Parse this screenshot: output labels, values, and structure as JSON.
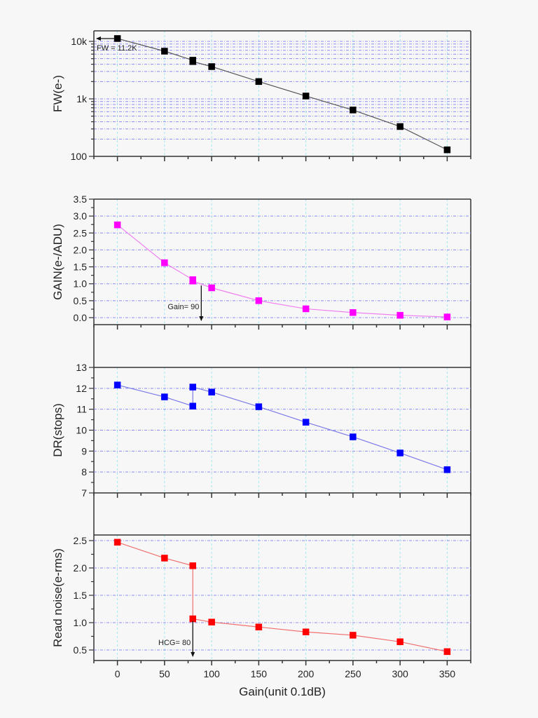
{
  "chart_data": {
    "type": "line",
    "xlabel": "Gain(unit 0.1dB)",
    "xlim": [
      -25,
      375
    ],
    "x_ticks": [
      0,
      50,
      100,
      150,
      200,
      250,
      300,
      350
    ],
    "x_tick_labels": [
      "0",
      "50",
      "100",
      "150",
      "200",
      "250",
      "300",
      "350"
    ],
    "grid": true,
    "panels": [
      {
        "id": "fw",
        "ylabel": "FW(e-)",
        "yscale": "log",
        "ylim": [
          100,
          15000
        ],
        "y_ticks": [
          100,
          1000,
          10000
        ],
        "y_tick_labels": [
          "100",
          "1k",
          "10k"
        ],
        "color": "#000000",
        "line_color": "#555555",
        "series": {
          "name": "FW",
          "x": [
            0,
            50,
            80,
            80,
            100,
            150,
            200,
            250,
            300,
            350
          ],
          "y": [
            11200,
            6750,
            4700,
            4450,
            3640,
            2000,
            1120,
            640,
            330,
            130
          ]
        },
        "annotation": {
          "text": "FW = 11.2K",
          "arrow": "left",
          "at_x": 0,
          "at_y": 11200
        }
      },
      {
        "id": "gain",
        "ylabel": "GAIN(e-/ADU)",
        "yscale": "linear",
        "ylim": [
          -0.2,
          3.5
        ],
        "y_ticks": [
          0.0,
          0.5,
          1.0,
          1.5,
          2.0,
          2.5,
          3.0,
          3.5
        ],
        "y_tick_labels": [
          "0.0",
          "0.5",
          "1.0",
          "1.5",
          "2.0",
          "2.5",
          "3.0",
          "3.5"
        ],
        "color": "#ff00ff",
        "line_color": "#f080f0",
        "series": {
          "name": "GAIN",
          "x": [
            0,
            50,
            80,
            80,
            100,
            150,
            200,
            250,
            300,
            350
          ],
          "y": [
            2.74,
            1.62,
            1.12,
            1.08,
            0.88,
            0.5,
            0.26,
            0.15,
            0.07,
            0.02
          ]
        },
        "annotation": {
          "text": "Gain= 90",
          "arrow": "down",
          "at_x": 89,
          "at_y": 0.95
        }
      },
      {
        "id": "dr",
        "ylabel": "DR(stops)",
        "yscale": "linear",
        "ylim": [
          7,
          13
        ],
        "y_ticks": [
          7,
          8,
          9,
          10,
          11,
          12,
          13
        ],
        "y_tick_labels": [
          "7",
          "8",
          "9",
          "10",
          "11",
          "12",
          "13"
        ],
        "color": "#0000ff",
        "line_color": "#7a7ae8",
        "series": {
          "name": "DR",
          "x": [
            0,
            50,
            80,
            80,
            100,
            150,
            200,
            250,
            300,
            350
          ],
          "y": [
            12.16,
            11.59,
            11.15,
            12.06,
            11.82,
            11.12,
            10.38,
            9.68,
            8.91,
            8.11
          ]
        }
      },
      {
        "id": "rn",
        "ylabel": "Read noise(e-rms)",
        "yscale": "linear",
        "ylim": [
          0.3,
          2.6
        ],
        "y_ticks": [
          0.5,
          1.0,
          1.5,
          2.0,
          2.5
        ],
        "y_tick_labels": [
          "0.5",
          "1.0",
          "1.5",
          "2.0",
          "2.5"
        ],
        "color": "#ff0000",
        "line_color": "#f07070",
        "series": {
          "name": "Read noise",
          "x": [
            0,
            50,
            80,
            80,
            100,
            150,
            200,
            250,
            300,
            350
          ],
          "y": [
            2.47,
            2.18,
            2.04,
            1.07,
            1.01,
            0.92,
            0.83,
            0.77,
            0.65,
            0.47
          ]
        },
        "annotation": {
          "text": "HCG= 80",
          "arrow": "down",
          "at_x": 80,
          "at_y": 1.03
        }
      }
    ]
  }
}
